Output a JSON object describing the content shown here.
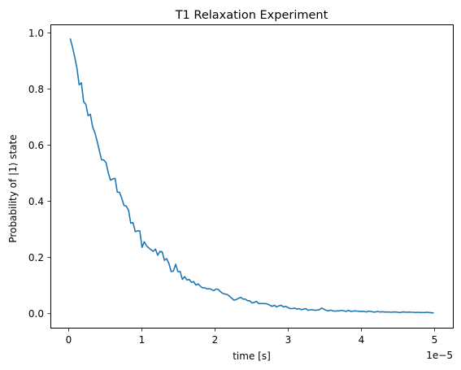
{
  "chart_data": {
    "type": "line",
    "title": "T1 Relaxation Experiment",
    "xlabel": "time [s]",
    "ylabel": "Probability of |1⟩ state",
    "x_offset_text": "1e−5",
    "xlim": [
      -2.5e-06,
      5.25e-05
    ],
    "ylim": [
      -0.05,
      1.03
    ],
    "x_ticks": [
      0,
      1e-05,
      2e-05,
      3e-05,
      4e-05,
      5e-05
    ],
    "x_tick_labels": [
      "0",
      "1",
      "2",
      "3",
      "4",
      "5"
    ],
    "y_ticks": [
      0.0,
      0.2,
      0.4,
      0.6,
      0.8,
      1.0
    ],
    "y_tick_labels": [
      "0.0",
      "0.2",
      "0.4",
      "0.6",
      "0.8",
      "1.0"
    ],
    "grid": false,
    "legend": "none",
    "series": [
      {
        "color": "#1f77b4",
        "x": [
          2e-07,
          5.1e-07,
          8.1e-07,
          1.12e-06,
          1.43e-06,
          1.73e-06,
          2.04e-06,
          2.35e-06,
          2.65e-06,
          2.96e-06,
          3.27e-06,
          3.57e-06,
          3.88e-06,
          4.19e-06,
          4.49e-06,
          4.8e-06,
          5.11e-06,
          5.42e-06,
          5.72e-06,
          6.03e-06,
          6.34e-06,
          6.64e-06,
          6.95e-06,
          7.26e-06,
          7.56e-06,
          7.87e-06,
          8.18e-06,
          8.48e-06,
          8.79e-06,
          9.1e-06,
          9.4e-06,
          9.71e-06,
          1.002e-05,
          1.032e-05,
          1.063e-05,
          1.094e-05,
          1.124e-05,
          1.155e-05,
          1.186e-05,
          1.216e-05,
          1.247e-05,
          1.278e-05,
          1.308e-05,
          1.339e-05,
          1.37e-05,
          1.4e-05,
          1.431e-05,
          1.462e-05,
          1.492e-05,
          1.523e-05,
          1.554e-05,
          1.585e-05,
          1.615e-05,
          1.646e-05,
          1.677e-05,
          1.707e-05,
          1.738e-05,
          1.769e-05,
          1.799e-05,
          1.83e-05,
          1.861e-05,
          1.891e-05,
          1.922e-05,
          1.953e-05,
          1.983e-05,
          2.014e-05,
          2.045e-05,
          2.075e-05,
          2.106e-05,
          2.137e-05,
          2.167e-05,
          2.198e-05,
          2.229e-05,
          2.259e-05,
          2.29e-05,
          2.321e-05,
          2.351e-05,
          2.382e-05,
          2.413e-05,
          2.443e-05,
          2.474e-05,
          2.505e-05,
          2.536e-05,
          2.566e-05,
          2.597e-05,
          2.628e-05,
          2.658e-05,
          2.689e-05,
          2.72e-05,
          2.75e-05,
          2.781e-05,
          2.812e-05,
          2.842e-05,
          2.873e-05,
          2.904e-05,
          2.934e-05,
          2.965e-05,
          2.996e-05,
          3.026e-05,
          3.057e-05,
          3.088e-05,
          3.118e-05,
          3.149e-05,
          3.18e-05,
          3.21e-05,
          3.241e-05,
          3.272e-05,
          3.302e-05,
          3.333e-05,
          3.364e-05,
          3.394e-05,
          3.425e-05,
          3.456e-05,
          3.487e-05,
          3.517e-05,
          3.548e-05,
          3.579e-05,
          3.609e-05,
          3.64e-05,
          3.671e-05,
          3.701e-05,
          3.732e-05,
          3.763e-05,
          3.793e-05,
          3.824e-05,
          3.855e-05,
          3.885e-05,
          3.916e-05,
          3.947e-05,
          3.977e-05,
          4.008e-05,
          4.039e-05,
          4.069e-05,
          4.1e-05,
          4.131e-05,
          4.161e-05,
          4.192e-05,
          4.223e-05,
          4.253e-05,
          4.284e-05,
          4.315e-05,
          4.345e-05,
          4.376e-05,
          4.407e-05,
          4.438e-05,
          4.468e-05,
          4.499e-05,
          4.53e-05,
          4.56e-05,
          4.591e-05,
          4.622e-05,
          4.652e-05,
          4.683e-05,
          4.714e-05,
          4.744e-05,
          4.775e-05,
          4.806e-05,
          4.836e-05,
          4.867e-05,
          4.898e-05,
          4.928e-05,
          4.959e-05,
          4.99e-05
        ],
        "y": [
          0.98,
          0.95,
          0.915,
          0.875,
          0.815,
          0.822,
          0.755,
          0.745,
          0.705,
          0.71,
          0.665,
          0.645,
          0.615,
          0.58,
          0.548,
          0.547,
          0.537,
          0.5,
          0.475,
          0.48,
          0.482,
          0.433,
          0.432,
          0.41,
          0.385,
          0.383,
          0.368,
          0.322,
          0.324,
          0.292,
          0.295,
          0.295,
          0.236,
          0.256,
          0.242,
          0.234,
          0.228,
          0.222,
          0.23,
          0.208,
          0.222,
          0.22,
          0.19,
          0.196,
          0.178,
          0.15,
          0.152,
          0.176,
          0.15,
          0.15,
          0.122,
          0.132,
          0.12,
          0.122,
          0.112,
          0.114,
          0.102,
          0.106,
          0.098,
          0.092,
          0.092,
          0.088,
          0.089,
          0.086,
          0.082,
          0.088,
          0.086,
          0.078,
          0.072,
          0.07,
          0.068,
          0.062,
          0.055,
          0.048,
          0.05,
          0.055,
          0.058,
          0.052,
          0.052,
          0.046,
          0.046,
          0.038,
          0.04,
          0.044,
          0.036,
          0.036,
          0.036,
          0.036,
          0.034,
          0.03,
          0.026,
          0.03,
          0.024,
          0.028,
          0.03,
          0.024,
          0.026,
          0.022,
          0.018,
          0.018,
          0.02,
          0.016,
          0.018,
          0.014,
          0.016,
          0.018,
          0.012,
          0.014,
          0.014,
          0.012,
          0.013,
          0.014,
          0.02,
          0.016,
          0.012,
          0.01,
          0.013,
          0.01,
          0.009,
          0.01,
          0.01,
          0.012,
          0.01,
          0.008,
          0.012,
          0.008,
          0.009,
          0.01,
          0.009,
          0.008,
          0.008,
          0.008,
          0.006,
          0.009,
          0.008,
          0.006,
          0.006,
          0.008,
          0.006,
          0.007,
          0.006,
          0.006,
          0.006,
          0.005,
          0.006,
          0.006,
          0.005,
          0.004,
          0.006,
          0.006,
          0.005,
          0.006,
          0.005,
          0.005,
          0.004,
          0.005,
          0.004,
          0.004,
          0.004,
          0.005,
          0.004,
          0.003,
          0.003
        ]
      }
    ]
  }
}
